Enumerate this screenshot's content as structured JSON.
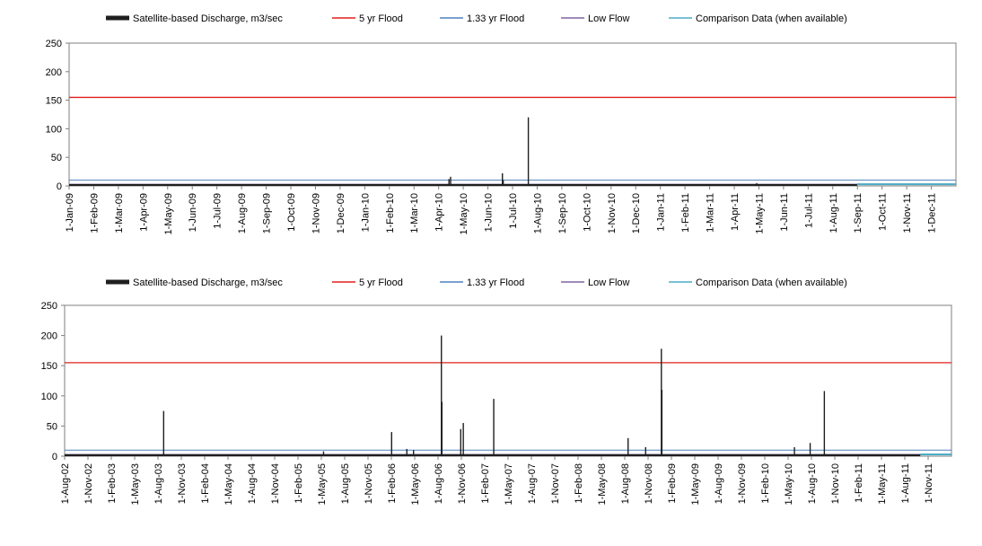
{
  "legend": {
    "items": [
      {
        "label": "Satellite-based Discharge, m3/sec",
        "color": "#1f1f1f",
        "style": "thick"
      },
      {
        "label": "5 yr Flood",
        "color": "#e0201b",
        "style": "line"
      },
      {
        "label": "1.33 yr Flood",
        "color": "#4f81bd",
        "style": "line"
      },
      {
        "label": "Low Flow",
        "color": "#8064a2",
        "style": "line"
      },
      {
        "label": "Comparison Data (when available)",
        "color": "#4bacc6",
        "style": "line"
      }
    ]
  },
  "chart_data": [
    {
      "type": "line",
      "title": "",
      "xlabel": "",
      "ylabel": "",
      "ylim": [
        0,
        250
      ],
      "yticks": [
        0,
        50,
        100,
        150,
        200,
        250
      ],
      "grid": false,
      "legend_position": "top",
      "x_range": [
        "2009-01-01",
        "2012-01-01"
      ],
      "x_tick_labels": [
        "1-Jan-09",
        "1-Feb-09",
        "1-Mar-09",
        "1-Apr-09",
        "1-May-09",
        "1-Jun-09",
        "1-Jul-09",
        "1-Aug-09",
        "1-Sep-09",
        "1-Oct-09",
        "1-Nov-09",
        "1-Dec-09",
        "1-Jan-10",
        "1-Feb-10",
        "1-Mar-10",
        "1-Apr-10",
        "1-May-10",
        "1-Jun-10",
        "1-Jul-10",
        "1-Aug-10",
        "1-Sep-10",
        "1-Oct-10",
        "1-Nov-10",
        "1-Dec-10",
        "1-Jan-11",
        "1-Feb-11",
        "1-Mar-11",
        "1-Apr-11",
        "1-May-11",
        "1-Jun-11",
        "1-Jul-11",
        "1-Aug-11",
        "1-Sep-11",
        "1-Oct-11",
        "1-Nov-11",
        "1-Dec-11"
      ],
      "thresholds": [
        {
          "name": "5 yr Flood",
          "value": 155,
          "color": "#e0201b"
        },
        {
          "name": "1.33 yr Flood",
          "value": 10,
          "color": "#4f81bd"
        },
        {
          "name": "Low Flow",
          "value": 3,
          "color": "#8064a2"
        }
      ],
      "series": [
        {
          "name": "Satellite-based Discharge, m3/sec",
          "color": "#1f1f1f",
          "baseline": 2,
          "peaks": [
            {
              "date": "2010-04-15",
              "value": 12
            },
            {
              "date": "2010-04-17",
              "value": 16
            },
            {
              "date": "2010-06-20",
              "value": 22
            },
            {
              "date": "2010-06-21",
              "value": 10
            },
            {
              "date": "2010-07-22",
              "value": 120
            },
            {
              "date": "2011-04-30",
              "value": 5
            }
          ],
          "end_date": "2011-09-01"
        },
        {
          "name": "Comparison Data (when available)",
          "color": "#4bacc6",
          "values": [
            [
              0.6,
              3
            ],
            [
              1.0,
              3
            ]
          ],
          "value": 3,
          "start_date": "2011-09-01",
          "end_date": "2012-01-01"
        }
      ]
    },
    {
      "type": "line",
      "title": "",
      "xlabel": "",
      "ylabel": "",
      "ylim": [
        0,
        250
      ],
      "yticks": [
        0,
        50,
        100,
        150,
        200,
        250
      ],
      "grid": false,
      "legend_position": "top",
      "x_range": [
        "2002-08-01",
        "2011-12-31"
      ],
      "x_tick_labels": [
        "1-Aug-02",
        "1-Nov-02",
        "1-Feb-03",
        "1-May-03",
        "1-Aug-03",
        "1-Nov-03",
        "1-Feb-04",
        "1-May-04",
        "1-Aug-04",
        "1-Nov-04",
        "1-Feb-05",
        "1-May-05",
        "1-Aug-05",
        "1-Nov-05",
        "1-Feb-06",
        "1-May-06",
        "1-Aug-06",
        "1-Nov-06",
        "1-Feb-07",
        "1-May-07",
        "1-Aug-07",
        "1-Nov-07",
        "1-Feb-08",
        "1-May-08",
        "1-Aug-08",
        "1-Nov-08",
        "1-Feb-09",
        "1-May-09",
        "1-Aug-09",
        "1-Nov-09",
        "1-Feb-10",
        "1-May-10",
        "1-Aug-10",
        "1-Nov-10",
        "1-Feb-11",
        "1-May-11",
        "1-Aug-11",
        "1-Nov-11"
      ],
      "thresholds": [
        {
          "name": "5 yr Flood",
          "value": 155,
          "color": "#e0201b"
        },
        {
          "name": "1.33 yr Flood",
          "value": 10,
          "color": "#4f81bd"
        },
        {
          "name": "Low Flow",
          "value": 3,
          "color": "#8064a2"
        }
      ],
      "series": [
        {
          "name": "Satellite-based Discharge, m3/sec",
          "color": "#1f1f1f",
          "baseline": 2,
          "peaks": [
            {
              "date": "2003-08-20",
              "value": 75
            },
            {
              "date": "2005-05-01",
              "value": 8
            },
            {
              "date": "2006-01-20",
              "value": 40
            },
            {
              "date": "2006-03-20",
              "value": 12
            },
            {
              "date": "2006-04-15",
              "value": 10
            },
            {
              "date": "2006-08-01",
              "value": 200
            },
            {
              "date": "2006-08-03",
              "value": 90
            },
            {
              "date": "2006-10-15",
              "value": 45
            },
            {
              "date": "2006-10-25",
              "value": 55
            },
            {
              "date": "2007-02-20",
              "value": 95
            },
            {
              "date": "2008-07-25",
              "value": 30
            },
            {
              "date": "2008-10-01",
              "value": 15
            },
            {
              "date": "2008-12-01",
              "value": 178
            },
            {
              "date": "2008-12-03",
              "value": 110
            },
            {
              "date": "2010-05-01",
              "value": 15
            },
            {
              "date": "2010-07-01",
              "value": 22
            },
            {
              "date": "2010-08-25",
              "value": 108
            }
          ],
          "end_date": "2011-09-01"
        },
        {
          "name": "Comparison Data (when available)",
          "color": "#4bacc6",
          "values": [
            [
              0.88,
              3
            ],
            [
              1.0,
              3
            ]
          ],
          "value": 3,
          "start_date": "2011-09-01",
          "end_date": "2011-12-31"
        }
      ]
    }
  ]
}
